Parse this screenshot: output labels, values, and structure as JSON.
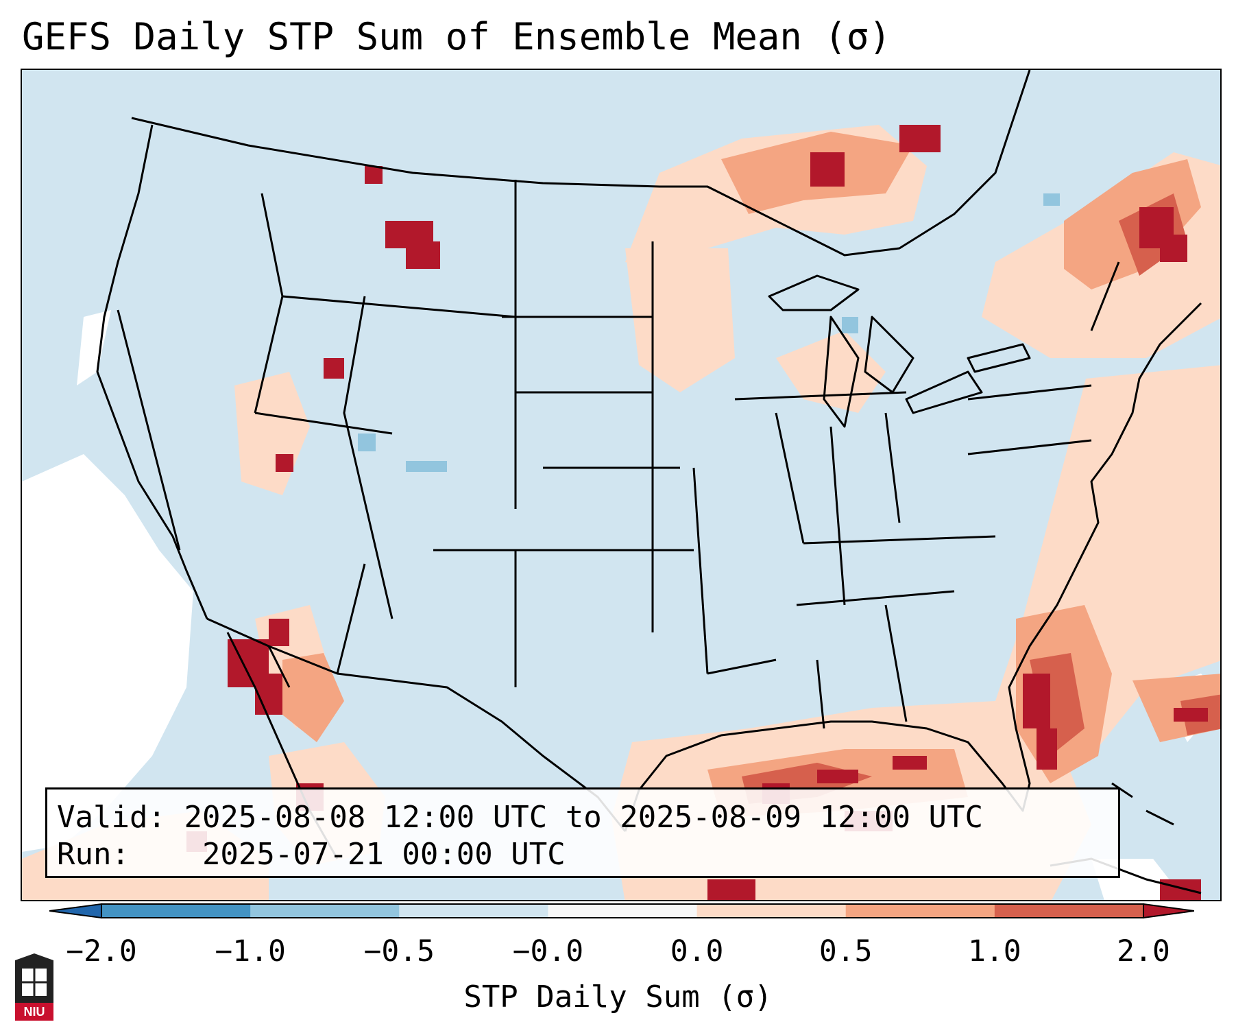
{
  "title": "GEFS Daily STP Sum of Ensemble Mean (σ)",
  "info": {
    "valid_label": "Valid:",
    "valid_value": "2025-08-08 12:00 UTC to 2025-08-09 12:00 UTC",
    "run_label": "Run:",
    "run_value": "2025-07-21 00:00 UTC"
  },
  "colorbar": {
    "label": "STP Daily Sum (σ)",
    "ticks": [
      "−2.0",
      "−1.0",
      "−0.5",
      "−0.0",
      "0.0",
      "0.5",
      "1.0",
      "2.0"
    ],
    "colors": [
      "#2166ac",
      "#4393c3",
      "#92c5de",
      "#d1e5f0",
      "#f7f7f7",
      "#fddbc7",
      "#f4a582",
      "#d6604d",
      "#b2182b"
    ]
  },
  "logo": {
    "text": "NIU",
    "icon": "niu-building-icon"
  },
  "map": {
    "projection": "CONUS Lambert Conformal",
    "background_color": "#d1e5f0",
    "boundaries": "state-and-country-borders"
  }
}
